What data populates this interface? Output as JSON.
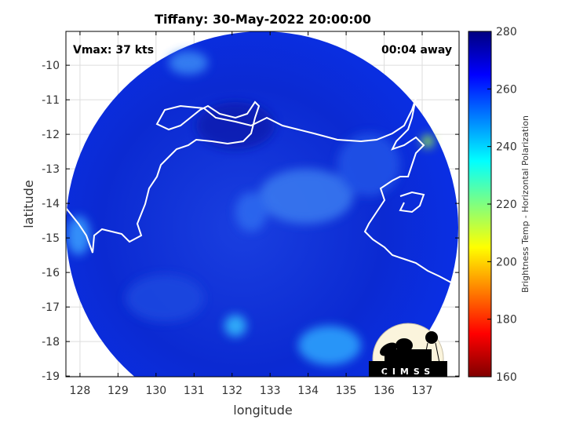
{
  "title": "Tiffany: 30-May-2022 20:00:00",
  "annotations": {
    "vmax": "Vmax: 37 kts",
    "time_away": "00:04 away"
  },
  "xlabel": "longitude",
  "ylabel": "latitude",
  "xticks": [
    "128",
    "129",
    "130",
    "131",
    "132",
    "133",
    "134",
    "135",
    "136",
    "137"
  ],
  "yticks": [
    "-10",
    "-11",
    "-12",
    "-13",
    "-14",
    "-15",
    "-16",
    "-17",
    "-18",
    "-19"
  ],
  "xlim": [
    127.63,
    137.97
  ],
  "ylim": [
    -19.02,
    -9.02
  ],
  "grid": true,
  "colorbar": {
    "label": "Brightness Temp - Horizontal Polarization",
    "ticks": [
      "280",
      "260",
      "240",
      "220",
      "200",
      "180",
      "160"
    ],
    "range": [
      160,
      280
    ],
    "colormap": [
      "#000080",
      "#0000ff",
      "#00ffff",
      "#ffff00",
      "#ff0000",
      "#800000"
    ]
  },
  "logo": {
    "text": "CIMSS"
  },
  "colors": {
    "data_dominant": "#0a2bd8",
    "coastline": "#ffffff",
    "logo_bg": "#fbf4dc"
  }
}
